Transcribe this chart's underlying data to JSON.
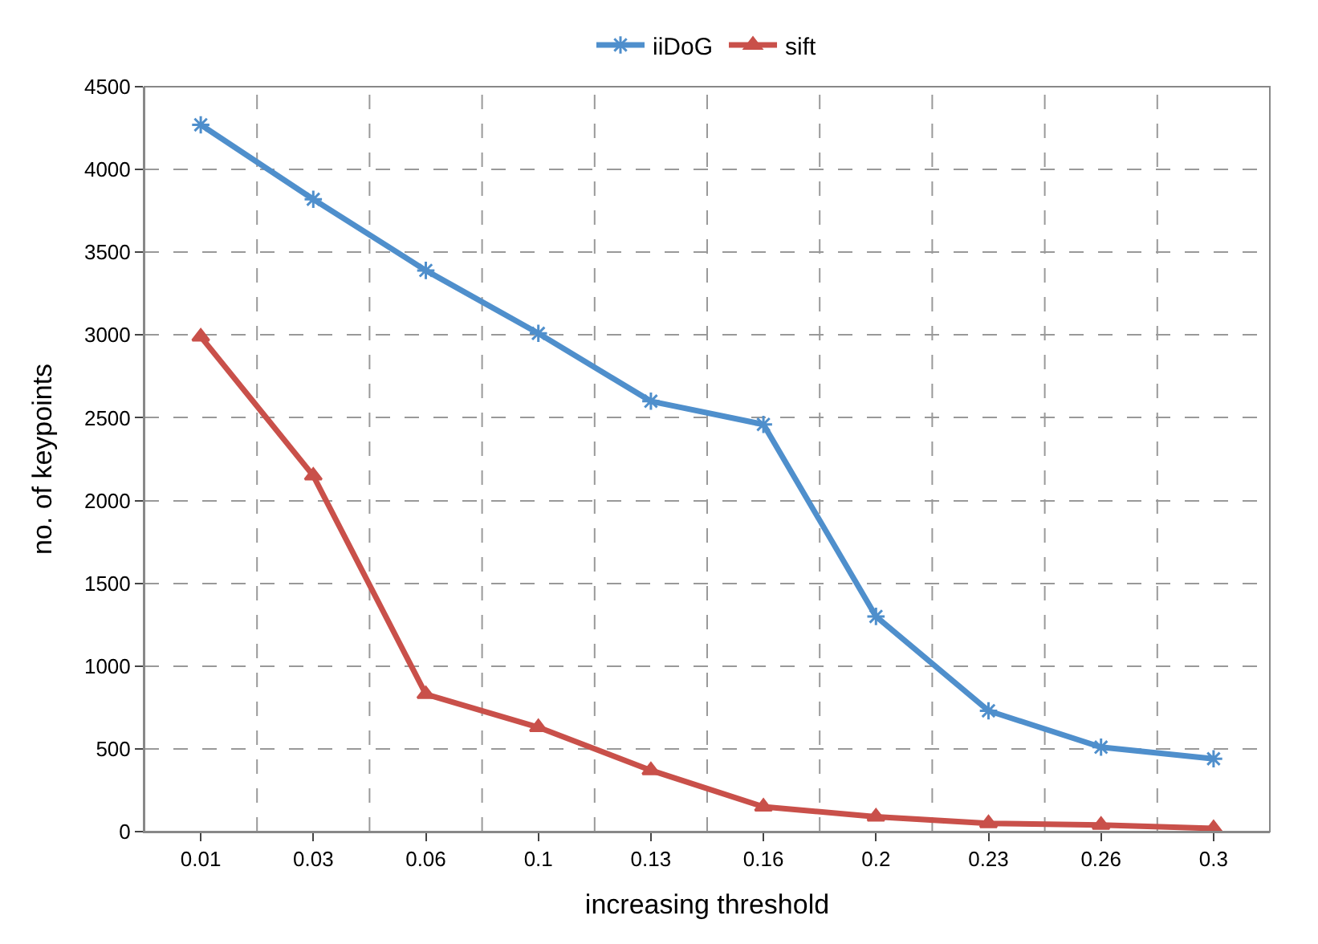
{
  "chart_data": {
    "type": "line",
    "xlabel": "increasing threshold",
    "ylabel": "no. of keypoints",
    "categories": [
      "0.01",
      "0.03",
      "0.06",
      "0.1",
      "0.13",
      "0.16",
      "0.2",
      "0.23",
      "0.26",
      "0.3"
    ],
    "series": [
      {
        "name": "iiDoG",
        "color": "#4f8fcc",
        "marker": "cross",
        "values": [
          4270,
          3820,
          3390,
          3010,
          2600,
          2460,
          1300,
          730,
          510,
          440
        ]
      },
      {
        "name": "sift",
        "color": "#c9504a",
        "marker": "triangle",
        "values": [
          2990,
          2150,
          830,
          630,
          370,
          150,
          90,
          50,
          40,
          20
        ]
      }
    ],
    "ylim": [
      0,
      4500
    ],
    "yticks": [
      0,
      500,
      1000,
      1500,
      2000,
      2500,
      3000,
      3500,
      4000,
      4500
    ],
    "grid": true,
    "legend": "top",
    "line_style": "solid"
  }
}
